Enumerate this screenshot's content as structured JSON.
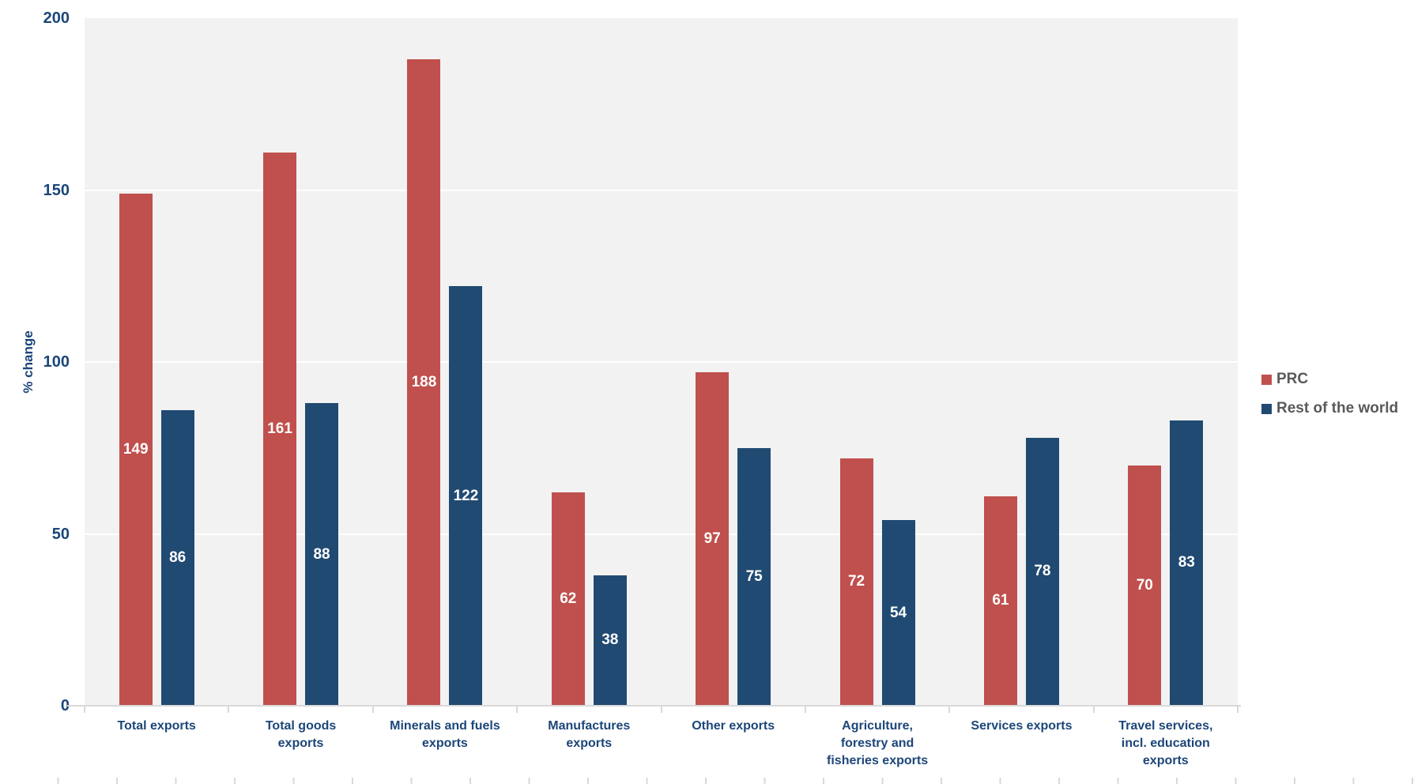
{
  "palette": {
    "plot_bg": "#f2f2f2",
    "gridline": "#ffffff",
    "axis_line": "#d9d9d9",
    "axis_text": "#1c4679",
    "legend_text": "#595959",
    "prc_red": "#c0504d",
    "row_blue": "#204a72"
  },
  "chart_data": {
    "type": "bar",
    "ylabel": "% change",
    "ylim": [
      0,
      200
    ],
    "yticks": [
      0,
      50,
      100,
      150,
      200
    ],
    "grid": "horizontal white gridlines every 50 on light gray plot background",
    "legend_position": "right",
    "bar_value_labels": "white, centered inside each bar",
    "categories": [
      "Total exports",
      "Total goods\nexports",
      "Minerals and fuels\nexports",
      "Manufactures\nexports",
      "Other exports",
      "Agriculture,\nforestry and\nfisheries exports",
      "Services exports",
      "Travel services,\nincl. education\nexports"
    ],
    "series": [
      {
        "name": "PRC",
        "color": "#c0504d",
        "values": [
          149,
          161,
          188,
          62,
          97,
          72,
          61,
          70
        ]
      },
      {
        "name": "Rest of the world",
        "color": "#204a72",
        "values": [
          86,
          88,
          122,
          38,
          75,
          54,
          78,
          83
        ]
      }
    ]
  }
}
